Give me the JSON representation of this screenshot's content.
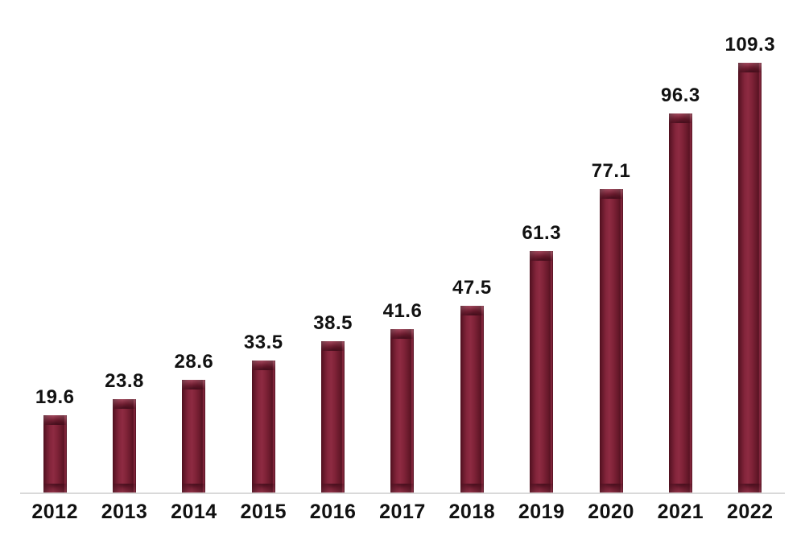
{
  "chart_data": {
    "type": "bar",
    "title": "",
    "xlabel": "",
    "ylabel": "",
    "categories": [
      "2012",
      "2013",
      "2014",
      "2015",
      "2016",
      "2017",
      "2018",
      "2019",
      "2020",
      "2021",
      "2022"
    ],
    "values": [
      19.6,
      23.8,
      28.6,
      33.5,
      38.5,
      41.6,
      47.5,
      61.3,
      77.1,
      96.3,
      109.3
    ],
    "data_labels": [
      "19.6",
      "23.8",
      "28.6",
      "33.5",
      "38.5",
      "41.6",
      "47.5",
      "61.3",
      "77.1",
      "96.3",
      "109.3"
    ],
    "ylim": [
      0,
      115
    ],
    "grid": false,
    "legend": false,
    "data_labels_shown": true,
    "bar_color": "#7e2237",
    "bar_edge_color": "#4e0f1e",
    "axis_line_color": "#d9d9d9",
    "label_color": "#111111",
    "background_color": "#ffffff"
  }
}
